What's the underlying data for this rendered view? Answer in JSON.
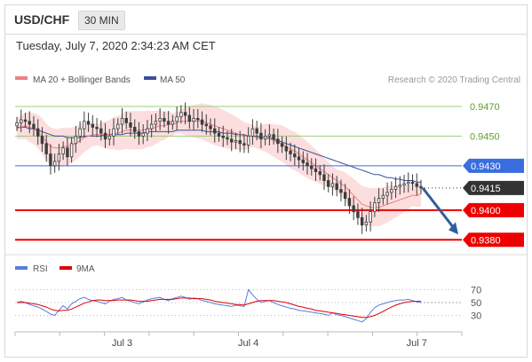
{
  "header": {
    "symbol": "USD/CHF",
    "timeframe": "30 MIN",
    "datetime": "Tuesday, July 7, 2020 2:34:23 AM CET"
  },
  "colors": {
    "ma20": "#f08080",
    "ma50": "#3a4f9a",
    "bands_fill": "#fbd3d3",
    "candle": "#3d3d3d",
    "resistance_line": "#9acd7a",
    "resistance_label": "#5fa028",
    "pivot": "#3a6de0",
    "support": "#ee0000",
    "current": "#333333",
    "arrow": "#2f5d9a",
    "rsi": "#5a7ddc",
    "ma9": "#dd0000"
  },
  "legend": {
    "ma20": "MA 20 + Bollinger Bands",
    "ma50": "MA 50",
    "rsi": "RSI",
    "ma9": "9MA"
  },
  "credit": "Research © 2020 Trading Central",
  "chart_data": {
    "type": "candlestick",
    "y_range": [
      0.9373,
      0.9482
    ],
    "x_labels": [
      {
        "label": "Jul 3",
        "index": 25
      },
      {
        "label": "Jul 4",
        "index": 55
      },
      {
        "label": "Jul 7",
        "index": 95
      }
    ],
    "levels": [
      {
        "value": 0.947,
        "label": "0.9470",
        "kind": "resistance"
      },
      {
        "value": 0.945,
        "label": "0.9450",
        "kind": "resistance"
      },
      {
        "value": 0.943,
        "label": "0.9430",
        "kind": "pivot"
      },
      {
        "value": 0.9415,
        "label": "0.9415",
        "kind": "current"
      },
      {
        "value": 0.94,
        "label": "0.9400",
        "kind": "support"
      },
      {
        "value": 0.938,
        "label": "0.9380",
        "kind": "support"
      }
    ],
    "forecast": {
      "from": 0.9415,
      "to": 0.938
    },
    "close": [
      0.9459,
      0.9461,
      0.946,
      0.9458,
      0.9455,
      0.945,
      0.9445,
      0.9438,
      0.943,
      0.9433,
      0.9438,
      0.9442,
      0.9436,
      0.9445,
      0.945,
      0.9455,
      0.946,
      0.9458,
      0.9456,
      0.9455,
      0.9452,
      0.9448,
      0.945,
      0.9455,
      0.9458,
      0.9462,
      0.9459,
      0.9456,
      0.9453,
      0.945,
      0.9452,
      0.9455,
      0.9458,
      0.946,
      0.9462,
      0.946,
      0.9458,
      0.946,
      0.9463,
      0.9466,
      0.9464,
      0.946,
      0.9462,
      0.9461,
      0.9458,
      0.9457,
      0.9455,
      0.9452,
      0.945,
      0.9449,
      0.9448,
      0.9446,
      0.9447,
      0.9445,
      0.9444,
      0.945,
      0.9455,
      0.9452,
      0.9448,
      0.945,
      0.9451,
      0.9448,
      0.9445,
      0.9443,
      0.944,
      0.9438,
      0.9436,
      0.9434,
      0.9432,
      0.943,
      0.9428,
      0.9426,
      0.9424,
      0.942,
      0.9416,
      0.9418,
      0.9414,
      0.9412,
      0.9408,
      0.9403,
      0.9399,
      0.9395,
      0.939,
      0.9392,
      0.9399,
      0.9405,
      0.9408,
      0.941,
      0.9412,
      0.9414,
      0.9416,
      0.9417,
      0.9418,
      0.9419,
      0.9418,
      0.9416,
      0.9415
    ],
    "ma20": [
      0.9455,
      0.9456,
      0.9457,
      0.9456,
      0.9455,
      0.9453,
      0.945,
      0.9446,
      0.9443,
      0.9442,
      0.9442,
      0.9443,
      0.9443,
      0.9444,
      0.9445,
      0.9447,
      0.9449,
      0.945,
      0.9451,
      0.9451,
      0.9451,
      0.9451,
      0.9451,
      0.9452,
      0.9452,
      0.9453,
      0.9454,
      0.9454,
      0.9454,
      0.9454,
      0.9454,
      0.9455,
      0.9455,
      0.9456,
      0.9457,
      0.9457,
      0.9458,
      0.9458,
      0.9459,
      0.946,
      0.946,
      0.946,
      0.946,
      0.946,
      0.946,
      0.9459,
      0.9458,
      0.9457,
      0.9456,
      0.9455,
      0.9454,
      0.9453,
      0.9452,
      0.9451,
      0.945,
      0.945,
      0.945,
      0.9449,
      0.9449,
      0.9449,
      0.9448,
      0.9447,
      0.9446,
      0.9445,
      0.9443,
      0.9441,
      0.944,
      0.9438,
      0.9436,
      0.9434,
      0.9432,
      0.943,
      0.9428,
      0.9426,
      0.9424,
      0.9422,
      0.942,
      0.9418,
      0.9416,
      0.9413,
      0.941,
      0.9407,
      0.9404,
      0.9403,
      0.9402,
      0.9402,
      0.9402,
      0.9403,
      0.9404,
      0.9405,
      0.9406,
      0.9407,
      0.9408,
      0.9409,
      0.941,
      0.941,
      0.9411
    ],
    "ma50": [
      0.9456,
      0.9456,
      0.9456,
      0.9455,
      0.9455,
      0.9454,
      0.9453,
      0.9452,
      0.9451,
      0.945,
      0.945,
      0.945,
      0.9449,
      0.9449,
      0.9449,
      0.9449,
      0.945,
      0.945,
      0.945,
      0.945,
      0.945,
      0.9451,
      0.9451,
      0.9451,
      0.9451,
      0.9451,
      0.9452,
      0.9452,
      0.9452,
      0.9452,
      0.9452,
      0.9453,
      0.9453,
      0.9453,
      0.9453,
      0.9453,
      0.9453,
      0.9453,
      0.9454,
      0.9454,
      0.9454,
      0.9454,
      0.9454,
      0.9454,
      0.9454,
      0.9453,
      0.9453,
      0.9453,
      0.9453,
      0.9452,
      0.9452,
      0.9452,
      0.9451,
      0.9451,
      0.9451,
      0.945,
      0.945,
      0.945,
      0.9449,
      0.9449,
      0.9449,
      0.9448,
      0.9447,
      0.9446,
      0.9445,
      0.9444,
      0.9443,
      0.9442,
      0.9441,
      0.944,
      0.9439,
      0.9438,
      0.9437,
      0.9436,
      0.9435,
      0.9434,
      0.9433,
      0.9432,
      0.9431,
      0.943,
      0.9429,
      0.9428,
      0.9427,
      0.9426,
      0.9425,
      0.9424,
      0.9424,
      0.9423,
      0.9422,
      0.9422,
      0.9421,
      0.9421,
      0.942,
      0.942,
      0.942,
      0.9419,
      0.9419
    ],
    "band_width": 0.001,
    "rsi": {
      "ticks": [
        70,
        50,
        30
      ],
      "range": [
        10,
        90
      ],
      "rsi": [
        50,
        52,
        50,
        47,
        45,
        43,
        40,
        36,
        32,
        30,
        38,
        45,
        40,
        48,
        52,
        56,
        58,
        55,
        53,
        52,
        50,
        48,
        52,
        55,
        56,
        58,
        54,
        52,
        50,
        48,
        51,
        54,
        56,
        57,
        58,
        55,
        53,
        56,
        58,
        60,
        58,
        55,
        57,
        56,
        53,
        52,
        50,
        48,
        47,
        46,
        45,
        44,
        46,
        45,
        44,
        70,
        62,
        55,
        50,
        52,
        53,
        50,
        47,
        45,
        43,
        41,
        40,
        38,
        37,
        36,
        35,
        34,
        33,
        32,
        30,
        34,
        31,
        30,
        28,
        26,
        24,
        22,
        20,
        25,
        35,
        42,
        46,
        48,
        50,
        52,
        53,
        54,
        54,
        55,
        53,
        51,
        50
      ],
      "ma9": [
        50,
        50,
        50,
        49,
        48,
        47,
        45,
        43,
        40,
        38,
        37,
        38,
        38,
        40,
        43,
        46,
        49,
        51,
        53,
        54,
        54,
        53,
        53,
        53,
        54,
        54,
        54,
        54,
        53,
        52,
        52,
        52,
        53,
        54,
        55,
        55,
        55,
        55,
        56,
        57,
        57,
        57,
        56,
        56,
        56,
        55,
        54,
        52,
        51,
        50,
        49,
        48,
        47,
        47,
        46,
        48,
        50,
        52,
        53,
        53,
        53,
        53,
        52,
        51,
        50,
        48,
        46,
        44,
        43,
        41,
        40,
        38,
        37,
        36,
        35,
        34,
        33,
        32,
        31,
        30,
        29,
        28,
        27,
        27,
        28,
        30,
        33,
        36,
        40,
        43,
        46,
        48,
        50,
        51,
        52,
        52,
        52
      ]
    }
  }
}
